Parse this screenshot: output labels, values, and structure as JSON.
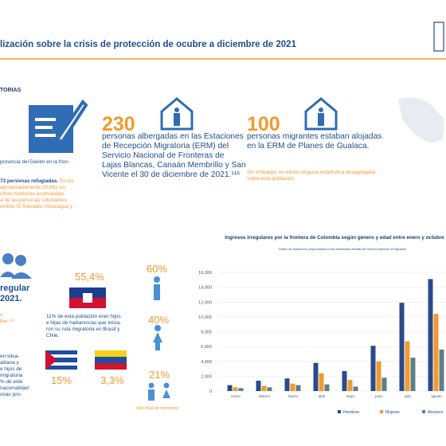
{
  "header": {
    "title": "lización sobre la crisis de protección de ocubre a diciembre de 2021"
  },
  "left_top": {
    "heading": "TORIAS",
    "line": "provincia del Darién en la fron-",
    "lead": "73 personas refugiadas.",
    "lines": [
      " En los",
      "aproximadamente 20,881 so-",
      "cifras históricas acumuladas.",
      "a de las personas solicitantes",
      "ombia, El Salvador, Nicaragua y"
    ]
  },
  "stat_230": {
    "number": "230",
    "text": [
      "personas albergadas en las Estaciones",
      "de Recepción Migratoria (ERM) del",
      "Servicio Nacional de Fronteras de",
      "Lajas Blancas, Canaán Membrillo y San",
      "Vicente el 30 de diciembre de 2021.¹¹⁶"
    ]
  },
  "stat_100": {
    "number": "100",
    "text": [
      "personas migrantes estaban alojadas",
      "en la ERM de Planes de Gualaca."
    ],
    "note": [
      "Sin embargo, no existe ninguna estadística desagregada",
      "sobre esta población."
    ]
  },
  "left_bottom": {
    "big": [
      "regular",
      "2021."
    ],
    "orange": [
      "s",
      "bre.¹¹³"
    ],
    "lines": [
      "en situa-",
      "aitiana y",
      "e hijos de",
      "migratoria",
      "% de este",
      "nacionalidad",
      "onas pro-"
    ]
  },
  "nationality": {
    "haiti": "55,4%",
    "haiti_text": [
      "11% de esta población eran hijos",
      "e hijas de haitianos/as que inicia-",
      "ron su ruta migratoria en Brasil y",
      "Chile."
    ],
    "cuba": "15%",
    "venezuela": "3,3%"
  },
  "minors": {
    "boys": "60%",
    "girls": "40%",
    "total": "21%",
    "note": "(del total de menores)"
  },
  "chart_data": {
    "type": "bar",
    "title": "Ingresos irregulares por la frontera de Colombia según género y edad entre enero y octubre",
    "subtitle": "Gráfico de elaboración propia basado en las estadísticas oficiales del Servicio Nacional de Migración",
    "categories": [
      "enero",
      "febrero",
      "marzo",
      "abril",
      "mayo",
      "junio",
      "julio",
      "agosto"
    ],
    "series": [
      {
        "name": "Hombres",
        "color": "#2b4a8b",
        "values": [
          800,
          1400,
          1700,
          3800,
          2700,
          6100,
          11900,
          15100
        ]
      },
      {
        "name": "Mujeres",
        "color": "#f29a2e",
        "values": [
          500,
          700,
          1000,
          2400,
          1500,
          4000,
          6700,
          10400
        ]
      },
      {
        "name": "Menores",
        "color": "#5f7f86",
        "values": [
          400,
          500,
          800,
          900,
          600,
          1800,
          4500,
          5600
        ]
      }
    ],
    "ylim": [
      0,
      16000
    ],
    "yticks": [
      0,
      {
        "value": 2000,
        "label": "2,000"
      },
      {
        "value": 4000,
        "label": "4,000"
      },
      {
        "value": 6000,
        "label": "6,000"
      },
      {
        "value": 8000,
        "label": "8,000"
      },
      {
        "value": 10000,
        "label": "10,000"
      },
      {
        "value": 12000,
        "label": "12,000"
      },
      {
        "value": 14000,
        "label": "14,000"
      },
      {
        "value": 16000,
        "label": "16,000"
      }
    ],
    "grid": true
  }
}
